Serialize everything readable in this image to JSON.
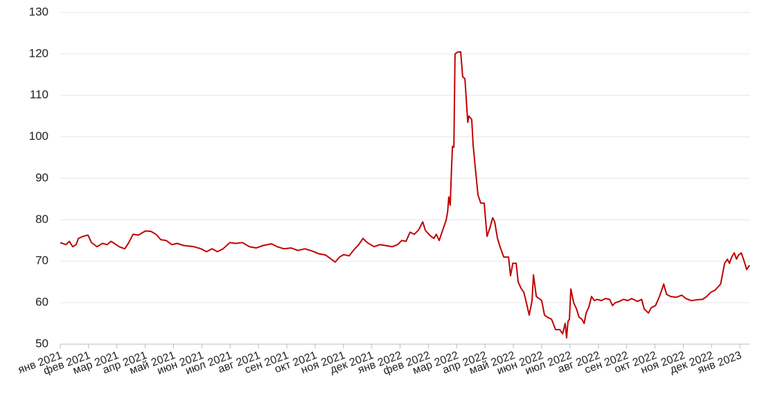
{
  "chart_data": {
    "type": "line",
    "xlim": [
      0,
      24.34
    ],
    "xticks": [
      {
        "value": 0,
        "label": "янв 2021"
      },
      {
        "value": 1,
        "label": "фев 2021"
      },
      {
        "value": 2,
        "label": "мар 2021"
      },
      {
        "value": 3,
        "label": "апр 2021"
      },
      {
        "value": 4,
        "label": "май 2021"
      },
      {
        "value": 5,
        "label": "июн 2021"
      },
      {
        "value": 6,
        "label": "июл 2021"
      },
      {
        "value": 7,
        "label": "авг 2021"
      },
      {
        "value": 8,
        "label": "сен 2021"
      },
      {
        "value": 9,
        "label": "окт 2021"
      },
      {
        "value": 10,
        "label": "ноя 2021"
      },
      {
        "value": 11,
        "label": "дек 2021"
      },
      {
        "value": 12,
        "label": "янв 2022"
      },
      {
        "value": 13,
        "label": "фев 2022"
      },
      {
        "value": 14,
        "label": "мар 2022"
      },
      {
        "value": 15,
        "label": "апр 2022"
      },
      {
        "value": 16,
        "label": "май 2022"
      },
      {
        "value": 17,
        "label": "июн 2022"
      },
      {
        "value": 18,
        "label": "июл 2022"
      },
      {
        "value": 19,
        "label": "авг 2022"
      },
      {
        "value": 20,
        "label": "сен 2022"
      },
      {
        "value": 21,
        "label": "окт 2022"
      },
      {
        "value": 22,
        "label": "ноя 2022"
      },
      {
        "value": 23,
        "label": "дек 2022"
      },
      {
        "value": 24,
        "label": "янв 2023"
      }
    ],
    "ylim": [
      50,
      130
    ],
    "yticks": [
      50,
      60,
      70,
      80,
      90,
      100,
      110,
      120,
      130
    ],
    "grid": true,
    "x": [
      0,
      0.2,
      0.32,
      0.44,
      0.56,
      0.64,
      0.81,
      0.98,
      1.1,
      1.3,
      1.49,
      1.66,
      1.79,
      1.93,
      2.08,
      2.28,
      2.42,
      2.57,
      2.76,
      3.01,
      3.2,
      3.38,
      3.55,
      3.74,
      3.94,
      4.13,
      4.35,
      4.72,
      4.97,
      5.16,
      5.36,
      5.55,
      5.75,
      5.99,
      6.19,
      6.43,
      6.68,
      6.92,
      7.17,
      7.46,
      7.66,
      7.9,
      8.15,
      8.39,
      8.64,
      8.88,
      9.13,
      9.37,
      9.57,
      9.71,
      9.86,
      10.01,
      10.2,
      10.4,
      10.54,
      10.69,
      10.84,
      11.08,
      11.28,
      11.47,
      11.72,
      11.91,
      12.06,
      12.21,
      12.35,
      12.5,
      12.65,
      12.8,
      12.89,
      13.04,
      13.19,
      13.28,
      13.38,
      13.53,
      13.63,
      13.68,
      13.72,
      13.77,
      13.82,
      13.85,
      13.9,
      13.94,
      14.02,
      14.14,
      14.21,
      14.29,
      14.39,
      14.43,
      14.53,
      14.58,
      14.65,
      14.75,
      14.85,
      14.97,
      15.07,
      15.17,
      15.27,
      15.34,
      15.44,
      15.53,
      15.66,
      15.83,
      15.9,
      15.98,
      16.1,
      16.17,
      16.27,
      16.37,
      16.46,
      16.56,
      16.66,
      16.71,
      16.81,
      16.91,
      17.0,
      17.1,
      17.2,
      17.35,
      17.49,
      17.64,
      17.74,
      17.83,
      17.88,
      17.93,
      17.98,
      18.03,
      18.13,
      18.23,
      18.32,
      18.42,
      18.5,
      18.57,
      18.67,
      18.76,
      18.86,
      18.96,
      19.11,
      19.25,
      19.4,
      19.5,
      19.6,
      19.74,
      19.89,
      20.04,
      20.18,
      20.38,
      20.53,
      20.62,
      20.77,
      20.87,
      21.02,
      21.16,
      21.31,
      21.41,
      21.55,
      21.75,
      21.95,
      22.09,
      22.29,
      22.48,
      22.68,
      22.83,
      22.97,
      23.12,
      23.32,
      23.46,
      23.56,
      23.63,
      23.71,
      23.8,
      23.88,
      23.95,
      24.05,
      24.15,
      24.24,
      24.34
    ],
    "series": [
      {
        "color": "#c00000",
        "values": [
          74.5,
          74,
          74.8,
          73.5,
          74,
          75.5,
          76,
          76.3,
          74.5,
          73.5,
          74.3,
          74,
          74.8,
          74.2,
          73.5,
          73,
          74.5,
          76.5,
          76.3,
          77.3,
          77.2,
          76.5,
          75.2,
          75,
          74,
          74.3,
          73.8,
          73.5,
          73,
          72.3,
          73,
          72.3,
          73,
          74.5,
          74.3,
          74.5,
          73.5,
          73.2,
          73.8,
          74.2,
          73.5,
          73,
          73.2,
          72.6,
          73,
          72.5,
          71.8,
          71.5,
          70.5,
          69.8,
          71,
          71.6,
          71.3,
          73,
          74,
          75.5,
          74.5,
          73.5,
          74,
          73.8,
          73.5,
          74,
          75,
          74.8,
          77,
          76.5,
          77.5,
          79.5,
          77.5,
          76.3,
          75.5,
          76.5,
          75,
          78,
          80,
          82,
          85.5,
          83.5,
          93,
          97.7,
          97.5,
          120,
          120.4,
          120.5,
          114.5,
          114,
          103.5,
          105,
          104.2,
          98,
          93,
          86,
          84,
          84,
          76,
          78,
          80.5,
          79.5,
          75.5,
          73.5,
          71,
          71,
          66.5,
          69.5,
          69.5,
          65,
          63.5,
          62.5,
          60,
          57,
          60.5,
          66.7,
          61.5,
          61,
          60.5,
          57,
          56.5,
          56,
          53.5,
          53.5,
          52.5,
          55,
          51.5,
          55.5,
          56,
          63.3,
          60,
          58.5,
          56.5,
          56,
          55,
          57.5,
          59,
          61.5,
          60.5,
          60.8,
          60.5,
          61,
          60.8,
          59.3,
          60,
          60.3,
          60.8,
          60.5,
          61,
          60.3,
          60.8,
          58.5,
          57.5,
          58.8,
          59.3,
          61.5,
          64.5,
          62,
          61.5,
          61.3,
          61.8,
          61,
          60.5,
          60.7,
          60.8,
          61.5,
          62.5,
          63,
          64.5,
          69.5,
          70.5,
          69.5,
          71,
          72,
          70.5,
          71.5,
          72,
          70,
          68,
          69
        ]
      }
    ]
  }
}
